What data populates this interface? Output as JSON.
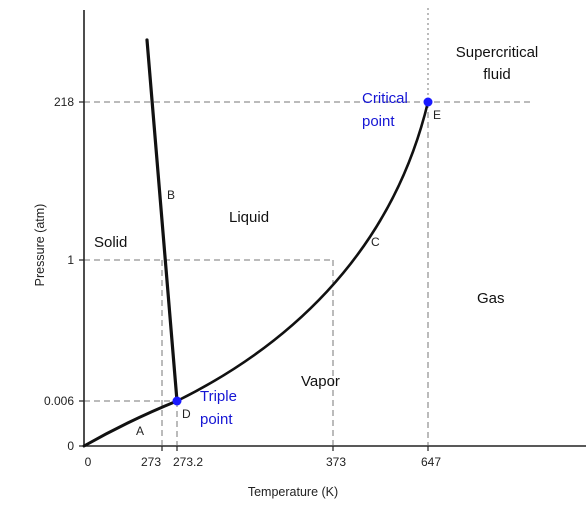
{
  "axes": {
    "x_label": "Temperature (K)",
    "y_label": "Pressure (atm)",
    "x_ticks": [
      "0",
      "273",
      "273.2",
      "373",
      "647"
    ],
    "y_ticks": [
      "218",
      "1",
      "0.006",
      "0"
    ]
  },
  "regions": {
    "solid": "Solid",
    "liquid": "Liquid",
    "vapor": "Vapor",
    "gas": "Gas",
    "supercritical_line1": "Supercritical",
    "supercritical_line2": "fluid"
  },
  "curve_letters": {
    "a": "A",
    "b": "B",
    "c": "C",
    "d": "D",
    "e": "E"
  },
  "points": {
    "triple_line1": "Triple",
    "triple_line2": "point",
    "critical_line1": "Critical",
    "critical_line2": "point"
  },
  "colors": {
    "curve": "#111111",
    "dashed": "#777777",
    "point": "#1a1aff",
    "point_label": "#1515d4"
  }
}
